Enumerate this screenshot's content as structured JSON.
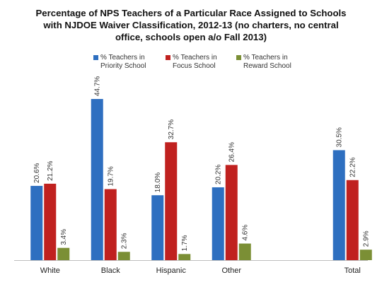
{
  "chart_data": {
    "type": "bar",
    "title_lines": [
      "Percentage of NPS Teachers of a Particular Race Assigned to Schools",
      "with NJDOE Waiver Classification, 2012-13 (no charters, no central",
      "office, schools open a/o Fall 2013)"
    ],
    "categories": [
      "White",
      "Black",
      "Hispanic",
      "Other",
      "Total"
    ],
    "category_slots": [
      0,
      1,
      2,
      3,
      5
    ],
    "ylim": [
      0,
      50
    ],
    "grid": false,
    "legend_position": "top",
    "series": [
      {
        "name_lines": [
          "% Teachers in",
          "Priority School"
        ],
        "color": "#2e6fc0",
        "values": [
          20.6,
          44.7,
          18.0,
          20.2,
          30.5
        ],
        "labels": [
          "20.6%",
          "44.7%",
          "18.0%",
          "20.2%",
          "30.5%"
        ]
      },
      {
        "name_lines": [
          "% Teachers in",
          "Focus School"
        ],
        "color": "#c0211f",
        "values": [
          21.2,
          19.7,
          32.7,
          26.4,
          22.2
        ],
        "labels": [
          "21.2%",
          "19.7%",
          "32.7%",
          "26.4%",
          "22.2%"
        ]
      },
      {
        "name_lines": [
          "% Teachers in",
          "Reward School"
        ],
        "color": "#7b8f35",
        "values": [
          3.4,
          2.3,
          1.7,
          4.6,
          2.9
        ],
        "labels": [
          "3.4%",
          "2.3%",
          "1.7%",
          "4.6%",
          "2.9%"
        ]
      }
    ]
  }
}
